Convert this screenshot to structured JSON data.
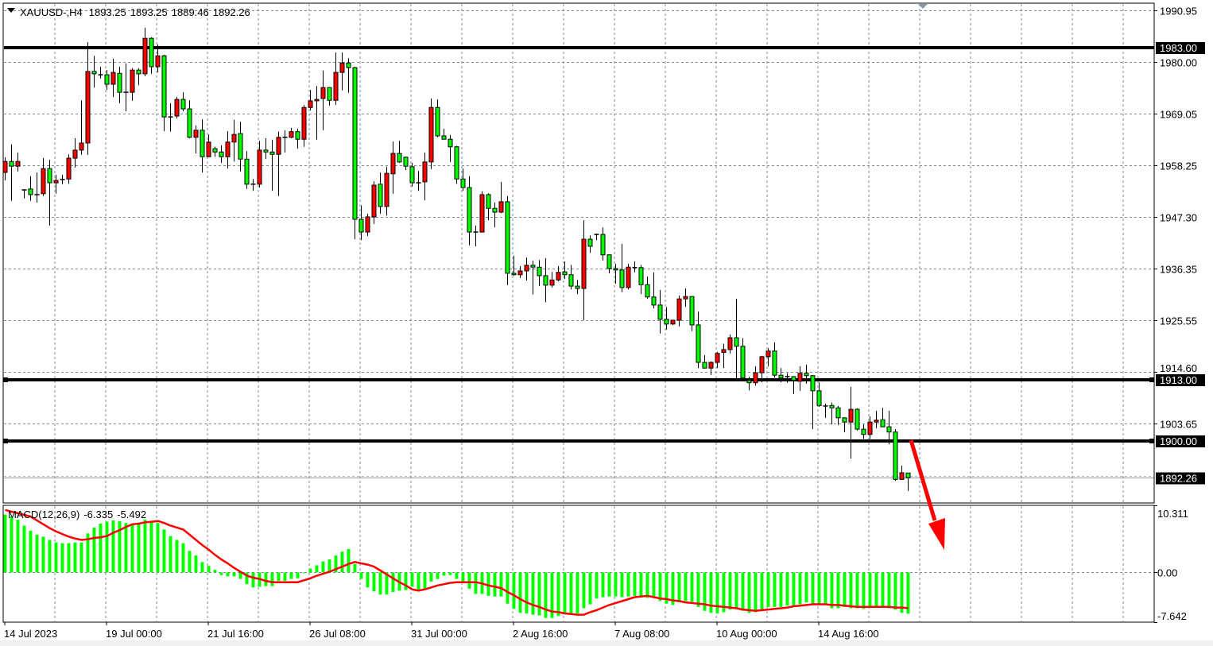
{
  "header": {
    "symbol_timeframe": "XAUUSD-,H4",
    "open": "1893.25",
    "high": "1893.25",
    "low": "1889.46",
    "close": "1892.26"
  },
  "macd_header": {
    "label": "MACD(12,26,9)",
    "main_value": "-6.335",
    "signal_value": "-5.492"
  },
  "colors": {
    "bull_candle": "#ff0000",
    "bear_candle": "#00ff00",
    "macd_histogram": "#00ff00",
    "signal_line": "#ff0000",
    "grid": "#7b8794",
    "level_line": "#000000",
    "annotation_arrow": "#ff0000"
  },
  "chart_data": [
    {
      "type": "candlestick",
      "symbol": "XAUUSD-",
      "timeframe": "H4",
      "ylim": [
        1885.5,
        1992.5
      ],
      "grid": true,
      "price_ticks": [
        "1990.95",
        "1980.00",
        "1969.05",
        "1958.25",
        "1947.30",
        "1936.35",
        "1925.55",
        "1914.60",
        "1903.65"
      ],
      "time_ticks": [
        "14 Jul 2023",
        "19 Jul 00:00",
        "21 Jul 16:00",
        "26 Jul 08:00",
        "31 Jul 00:00",
        "2 Aug 16:00",
        "7 Aug 08:00",
        "10 Aug 00:00",
        "14 Aug 16:00"
      ],
      "horizontal_lines": [
        {
          "label": "1983.00",
          "value": 1983.0,
          "style": "thick"
        },
        {
          "label": "1913.00",
          "value": 1913.0,
          "style": "thick"
        },
        {
          "label": "1900.00",
          "value": 1900.0,
          "style": "thick"
        }
      ],
      "current_price": {
        "label": "1892.26",
        "value": 1892.26
      },
      "annotation": "red-down-arrow",
      "ohlc": [
        [
          1956.7,
          1959.9,
          1955.0,
          1959.0
        ],
        [
          1959.0,
          1962.6,
          1950.7,
          1958.0
        ],
        [
          1958.0,
          1960.9,
          1956.9,
          1959.0
        ],
        [
          1953.0,
          1953.0,
          1951.2,
          1953.0
        ],
        [
          1953.2,
          1955.9,
          1950.7,
          1952.0
        ],
        [
          1952.0,
          1956.7,
          1950.3,
          1952.0
        ],
        [
          1952.2,
          1959.7,
          1951.7,
          1957.5
        ],
        [
          1957.5,
          1959.4,
          1945.5,
          1954.5
        ],
        [
          1954.5,
          1956.2,
          1952.2,
          1955.0
        ],
        [
          1955.2,
          1956.2,
          1954.2,
          1955.2
        ],
        [
          1955.3,
          1960.5,
          1954.3,
          1959.7
        ],
        [
          1959.7,
          1963.9,
          1957.7,
          1961.4
        ],
        [
          1961.4,
          1971.9,
          1960.4,
          1962.9
        ],
        [
          1962.9,
          1984.2,
          1960.4,
          1978.0
        ],
        [
          1978.0,
          1981.3,
          1974.6,
          1977.5
        ],
        [
          1977.3,
          1979.0,
          1976.5,
          1977.3
        ],
        [
          1977.3,
          1978.3,
          1974.1,
          1975.3
        ],
        [
          1975.3,
          1980.7,
          1972.6,
          1977.8
        ],
        [
          1977.6,
          1979.0,
          1971.3,
          1973.6
        ],
        [
          1973.6,
          1979.7,
          1969.6,
          1973.6
        ],
        [
          1973.6,
          1978.7,
          1971.8,
          1978.3
        ],
        [
          1978.3,
          1978.7,
          1975.1,
          1977.5
        ],
        [
          1977.5,
          1987.2,
          1977.0,
          1985.0
        ],
        [
          1985.0,
          1985.2,
          1977.5,
          1979.0
        ],
        [
          1979.0,
          1983.7,
          1977.8,
          1981.3
        ],
        [
          1981.3,
          1981.5,
          1965.4,
          1968.4
        ],
        [
          1968.4,
          1971.3,
          1965.3,
          1968.4
        ],
        [
          1968.6,
          1972.6,
          1968.1,
          1972.1
        ],
        [
          1972.1,
          1973.6,
          1969.6,
          1970.1
        ],
        [
          1970.1,
          1971.9,
          1963.9,
          1964.1
        ],
        [
          1964.1,
          1966.6,
          1960.7,
          1965.6
        ],
        [
          1965.6,
          1967.9,
          1956.7,
          1960.0
        ],
        [
          1960.0,
          1964.7,
          1960.0,
          1963.1
        ],
        [
          1961.7,
          1962.1,
          1960.0,
          1961.0
        ],
        [
          1961.0,
          1962.4,
          1958.7,
          1960.0
        ],
        [
          1960.0,
          1965.4,
          1957.5,
          1963.1
        ],
        [
          1963.1,
          1967.8,
          1959.0,
          1964.7
        ],
        [
          1964.9,
          1967.4,
          1956.9,
          1959.5
        ],
        [
          1959.5,
          1961.2,
          1953.2,
          1954.2
        ],
        [
          1954.2,
          1955.3,
          1952.8,
          1954.2
        ],
        [
          1954.2,
          1963.4,
          1953.5,
          1961.4
        ],
        [
          1961.4,
          1963.9,
          1959.5,
          1961.0
        ],
        [
          1961.0,
          1963.6,
          1952.8,
          1960.5
        ],
        [
          1960.5,
          1965.3,
          1951.7,
          1964.1
        ],
        [
          1964.1,
          1965.6,
          1960.9,
          1964.1
        ],
        [
          1964.1,
          1966.1,
          1963.9,
          1965.3
        ],
        [
          1965.3,
          1965.9,
          1961.7,
          1963.7
        ],
        [
          1963.7,
          1970.9,
          1962.1,
          1970.4
        ],
        [
          1970.4,
          1974.1,
          1969.8,
          1971.8
        ],
        [
          1971.8,
          1974.9,
          1963.6,
          1972.1
        ],
        [
          1972.3,
          1978.2,
          1965.6,
          1974.6
        ],
        [
          1974.6,
          1974.6,
          1970.8,
          1971.9
        ],
        [
          1971.9,
          1982.0,
          1970.9,
          1977.8
        ],
        [
          1977.8,
          1982.0,
          1974.0,
          1979.8
        ],
        [
          1979.8,
          1980.8,
          1973.5,
          1978.8
        ],
        [
          1978.8,
          1979.0,
          1942.6,
          1946.8
        ],
        [
          1946.8,
          1949.7,
          1942.4,
          1944.1
        ],
        [
          1944.1,
          1948.0,
          1943.3,
          1947.3
        ],
        [
          1947.3,
          1954.8,
          1945.8,
          1954.0
        ],
        [
          1954.2,
          1956.7,
          1948.0,
          1949.5
        ],
        [
          1949.5,
          1957.9,
          1947.6,
          1956.5
        ],
        [
          1956.4,
          1963.2,
          1952.2,
          1960.7
        ],
        [
          1960.7,
          1963.4,
          1958.7,
          1958.9
        ],
        [
          1959.9,
          1960.0,
          1957.2,
          1958.0
        ],
        [
          1957.9,
          1958.7,
          1953.7,
          1954.5
        ],
        [
          1954.5,
          1957.0,
          1952.8,
          1954.5
        ],
        [
          1954.7,
          1960.9,
          1950.8,
          1958.9
        ],
        [
          1958.9,
          1972.3,
          1957.4,
          1970.4
        ],
        [
          1970.4,
          1972.1,
          1964.1,
          1964.4
        ],
        [
          1964.4,
          1965.9,
          1963.7,
          1963.7
        ],
        [
          1963.7,
          1964.6,
          1958.9,
          1962.1
        ],
        [
          1962.1,
          1962.3,
          1954.3,
          1955.3
        ],
        [
          1955.3,
          1957.5,
          1952.8,
          1953.5
        ],
        [
          1953.5,
          1955.9,
          1941.3,
          1944.1
        ],
        [
          1944.1,
          1945.5,
          1941.1,
          1944.1
        ],
        [
          1944.1,
          1952.7,
          1944.0,
          1952.0
        ],
        [
          1952.0,
          1952.3,
          1946.6,
          1949.1
        ],
        [
          1949.1,
          1950.3,
          1945.1,
          1948.3
        ],
        [
          1948.3,
          1954.7,
          1948.1,
          1950.5
        ],
        [
          1950.5,
          1951.7,
          1932.9,
          1935.4
        ],
        [
          1935.4,
          1939.1,
          1934.9,
          1935.1
        ],
        [
          1935.1,
          1936.9,
          1934.4,
          1935.9
        ],
        [
          1935.9,
          1938.7,
          1933.9,
          1937.1
        ],
        [
          1937.1,
          1938.1,
          1930.9,
          1936.7
        ],
        [
          1936.7,
          1938.2,
          1932.7,
          1934.9
        ],
        [
          1934.9,
          1938.6,
          1929.3,
          1932.9
        ],
        [
          1932.9,
          1935.7,
          1932.4,
          1934.0
        ],
        [
          1934.0,
          1936.9,
          1933.7,
          1935.6
        ],
        [
          1935.7,
          1937.9,
          1934.2,
          1935.1
        ],
        [
          1935.1,
          1937.2,
          1932.0,
          1932.7
        ],
        [
          1932.7,
          1934.0,
          1931.0,
          1932.2
        ],
        [
          1932.2,
          1946.6,
          1925.5,
          1942.6
        ],
        [
          1942.6,
          1943.4,
          1939.7,
          1941.1
        ],
        [
          1943.6,
          1943.8,
          1942.4,
          1943.6
        ],
        [
          1943.6,
          1945.1,
          1938.1,
          1939.3
        ],
        [
          1939.3,
          1939.4,
          1935.4,
          1936.4
        ],
        [
          1936.4,
          1937.4,
          1933.2,
          1936.1
        ],
        [
          1936.1,
          1941.6,
          1931.4,
          1932.4
        ],
        [
          1932.4,
          1937.4,
          1932.0,
          1936.7
        ],
        [
          1936.6,
          1937.9,
          1935.6,
          1936.6
        ],
        [
          1936.6,
          1937.2,
          1931.0,
          1933.0
        ],
        [
          1933.0,
          1934.7,
          1930.0,
          1930.4
        ],
        [
          1930.4,
          1935.6,
          1928.0,
          1928.7
        ],
        [
          1928.7,
          1931.9,
          1922.7,
          1925.7
        ],
        [
          1925.7,
          1928.3,
          1923.5,
          1924.7
        ],
        [
          1924.7,
          1925.5,
          1924.5,
          1925.5
        ],
        [
          1925.5,
          1930.7,
          1924.2,
          1930.0
        ],
        [
          1930.0,
          1932.2,
          1928.3,
          1930.5
        ],
        [
          1930.5,
          1930.5,
          1923.2,
          1924.5
        ],
        [
          1924.5,
          1927.3,
          1915.4,
          1916.6
        ],
        [
          1916.6,
          1918.1,
          1915.3,
          1915.4
        ],
        [
          1915.4,
          1916.8,
          1913.9,
          1916.6
        ],
        [
          1916.6,
          1918.8,
          1915.4,
          1918.5
        ],
        [
          1918.7,
          1920.5,
          1915.4,
          1919.3
        ],
        [
          1919.3,
          1922.5,
          1918.5,
          1921.8
        ],
        [
          1921.8,
          1930.0,
          1913.1,
          1920.0
        ],
        [
          1920.0,
          1921.7,
          1913.3,
          1913.3
        ],
        [
          1912.8,
          1913.6,
          1910.7,
          1912.3
        ],
        [
          1912.3,
          1915.8,
          1911.7,
          1914.4
        ],
        [
          1914.4,
          1918.0,
          1912.4,
          1917.8
        ],
        [
          1917.8,
          1919.6,
          1915.8,
          1919.0
        ],
        [
          1919.0,
          1920.8,
          1913.4,
          1913.9
        ],
        [
          1913.9,
          1915.4,
          1912.4,
          1913.3
        ],
        [
          1913.6,
          1914.3,
          1912.3,
          1913.6
        ],
        [
          1913.6,
          1913.6,
          1909.9,
          1912.8
        ],
        [
          1912.6,
          1915.8,
          1910.6,
          1914.3
        ],
        [
          1914.3,
          1916.1,
          1912.1,
          1913.8
        ],
        [
          1913.8,
          1913.9,
          1902.5,
          1910.6
        ],
        [
          1910.6,
          1912.4,
          1907.2,
          1907.5
        ],
        [
          1907.4,
          1907.9,
          1904.9,
          1907.4
        ],
        [
          1907.5,
          1908.1,
          1903.5,
          1907.0
        ],
        [
          1907.0,
          1907.4,
          1903.4,
          1904.9
        ],
        [
          1904.9,
          1905.0,
          1901.9,
          1904.0
        ],
        [
          1904.0,
          1911.4,
          1896.3,
          1906.7
        ],
        [
          1906.7,
          1906.9,
          1902.2,
          1902.5
        ],
        [
          1902.5,
          1903.5,
          1900.4,
          1901.4
        ],
        [
          1901.4,
          1905.2,
          1900.4,
          1904.0
        ],
        [
          1904.0,
          1906.4,
          1902.7,
          1904.4
        ],
        [
          1904.5,
          1907.0,
          1903.0,
          1903.0
        ],
        [
          1903.0,
          1906.4,
          1899.3,
          1901.9
        ],
        [
          1901.9,
          1902.5,
          1891.6,
          1891.9
        ],
        [
          1891.9,
          1894.8,
          1891.8,
          1893.3
        ],
        [
          1893.25,
          1893.25,
          1889.46,
          1892.26
        ]
      ]
    },
    {
      "type": "bar",
      "title": "MACD(12,26,9)",
      "ylim": [
        -7.642,
        10.311
      ],
      "y_ticks": [
        "10.311",
        "0.00",
        "-7.642"
      ],
      "macd": [
        8.9,
        8.6,
        8.1,
        7.2,
        6.4,
        5.8,
        5.5,
        5.0,
        4.6,
        4.5,
        4.5,
        4.6,
        4.6,
        6.0,
        6.9,
        7.5,
        7.8,
        8.0,
        7.9,
        7.6,
        7.5,
        7.6,
        8.1,
        7.9,
        7.6,
        6.6,
        5.6,
        5.0,
        4.5,
        3.3,
        2.6,
        1.6,
        1.0,
        0.4,
        -0.4,
        -0.6,
        -0.6,
        -1.0,
        -1.8,
        -2.3,
        -2.2,
        -2.1,
        -2.1,
        -1.3,
        -1.3,
        -1.0,
        -0.9,
        -0.1,
        0.6,
        1.1,
        1.7,
        2.0,
        2.6,
        3.2,
        3.6,
        1.3,
        -1.0,
        -2.3,
        -2.9,
        -3.4,
        -3.4,
        -3.0,
        -2.8,
        -2.7,
        -2.2,
        -2.8,
        -2.5,
        -1.4,
        -1.0,
        -0.5,
        -0.4,
        -1.0,
        -1.4,
        -2.5,
        -3.3,
        -3.3,
        -3.6,
        -3.7,
        -3.7,
        -4.8,
        -5.6,
        -6.2,
        -6.3,
        -6.5,
        -6.6,
        -7.0,
        -7.0,
        -6.7,
        -6.3,
        -6.4,
        -6.3,
        -5.5,
        -4.9,
        -4.0,
        -3.8,
        -3.7,
        -3.7,
        -3.8,
        -3.7,
        -3.6,
        -3.7,
        -3.9,
        -3.9,
        -4.4,
        -4.8,
        -5.0,
        -4.6,
        -4.4,
        -4.5,
        -5.3,
        -5.9,
        -6.2,
        -6.3,
        -6.1,
        -5.7,
        -5.6,
        -5.9,
        -6.2,
        -6.1,
        -5.9,
        -5.3,
        -5.3,
        -5.3,
        -5.1,
        -5.1,
        -4.9,
        -4.6,
        -4.8,
        -5.0,
        -5.0,
        -5.5,
        -5.5,
        -5.3,
        -5.5,
        -5.5,
        -5.6,
        -5.3,
        -5.3,
        -5.3,
        -5.5,
        -5.7,
        -6.2,
        -6.335
      ],
      "signal": [
        9.6,
        9.35,
        9.1,
        8.85,
        8.6,
        8.0,
        7.4,
        6.8,
        6.3,
        5.9,
        5.5,
        5.2,
        5.0,
        5.1,
        5.3,
        5.4,
        5.6,
        6.1,
        6.5,
        7.0,
        7.4,
        7.5,
        7.7,
        7.8,
        7.9,
        7.6,
        7.2,
        6.9,
        6.6,
        5.8,
        5.0,
        4.2,
        3.5,
        2.7,
        2.0,
        1.4,
        0.7,
        0.1,
        -0.5,
        -0.8,
        -1.0,
        -1.3,
        -1.5,
        -1.5,
        -1.5,
        -1.5,
        -1.5,
        -1.2,
        -0.9,
        -0.5,
        -0.2,
        0.1,
        0.5,
        0.9,
        1.3,
        1.6,
        1.4,
        1.2,
        0.9,
        0.3,
        -0.3,
        -0.9,
        -1.5,
        -2.0,
        -2.6,
        -2.8,
        -2.6,
        -2.3,
        -2.0,
        -1.8,
        -1.6,
        -1.5,
        -1.5,
        -1.5,
        -1.5,
        -1.7,
        -2.0,
        -2.2,
        -2.4,
        -3.0,
        -3.5,
        -4.1,
        -4.6,
        -5.0,
        -5.3,
        -5.7,
        -6.0,
        -6.1,
        -6.3,
        -6.4,
        -6.5,
        -6.5,
        -6.1,
        -5.8,
        -5.4,
        -5.0,
        -4.7,
        -4.4,
        -4.1,
        -3.8,
        -3.7,
        -3.6,
        -3.8,
        -4.0,
        -4.1,
        -4.3,
        -4.4,
        -4.6,
        -4.7,
        -4.8,
        -4.9,
        -5.1,
        -5.2,
        -5.3,
        -5.4,
        -5.5,
        -5.7,
        -5.8,
        -5.9,
        -5.8,
        -5.7,
        -5.6,
        -5.5,
        -5.4,
        -5.2,
        -5.1,
        -5.0,
        -4.9,
        -4.9,
        -4.9,
        -5.0,
        -5.0,
        -5.1,
        -5.2,
        -5.3,
        -5.3,
        -5.3,
        -5.3,
        -5.3,
        -5.3,
        -5.4,
        -5.4,
        -5.492
      ]
    }
  ]
}
